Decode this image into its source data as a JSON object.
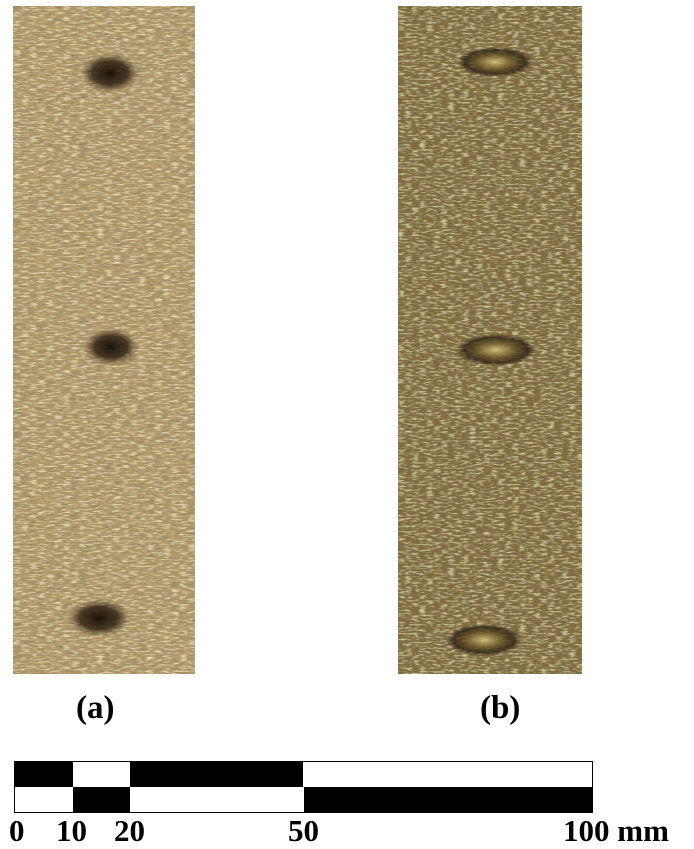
{
  "panels": [
    {
      "label": "(a)"
    },
    {
      "label": "(b)"
    }
  ],
  "scale_bar": {
    "ticks": [
      "0",
      "10",
      "20",
      "50",
      "100 mm"
    ],
    "segment_boundaries_mm": [
      0,
      10,
      20,
      50,
      100
    ],
    "colors": {
      "dark": "#000000",
      "light": "#ffffff"
    }
  },
  "colors": {
    "specimen_a_base": "#b29a6b",
    "specimen_b_base": "#7e6a3a",
    "pit_dark": "#1e140a"
  }
}
